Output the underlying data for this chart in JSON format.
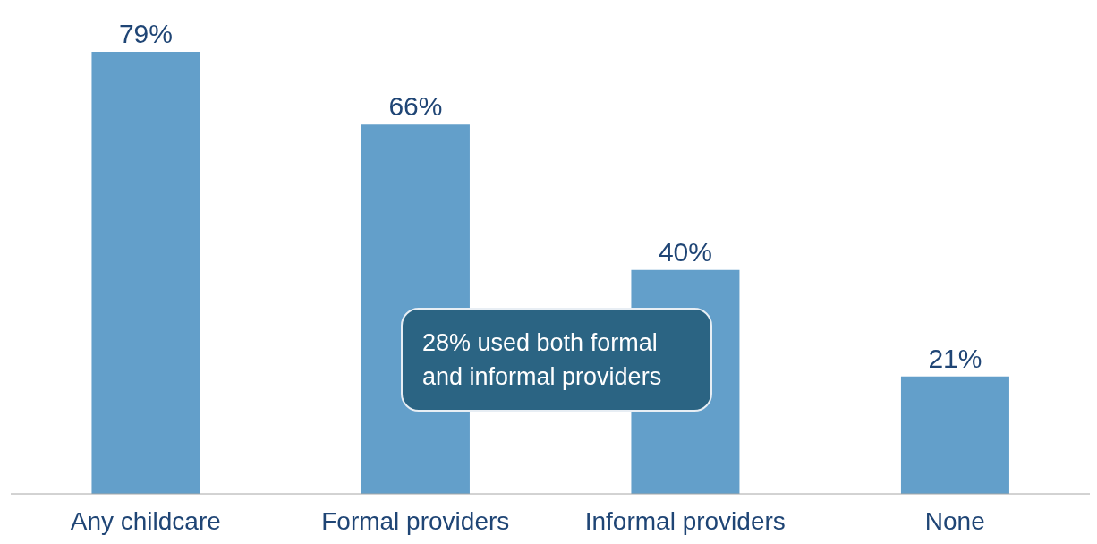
{
  "chart_data": {
    "type": "bar",
    "categories": [
      "Any childcare",
      "Formal providers",
      "Informal providers",
      "None"
    ],
    "values": [
      79,
      66,
      40,
      21
    ],
    "value_labels": [
      "79%",
      "66%",
      "40%",
      "21%"
    ],
    "color": "#639fca",
    "annotations": [
      "28% used both formal and informal providers"
    ],
    "grid": false
  }
}
